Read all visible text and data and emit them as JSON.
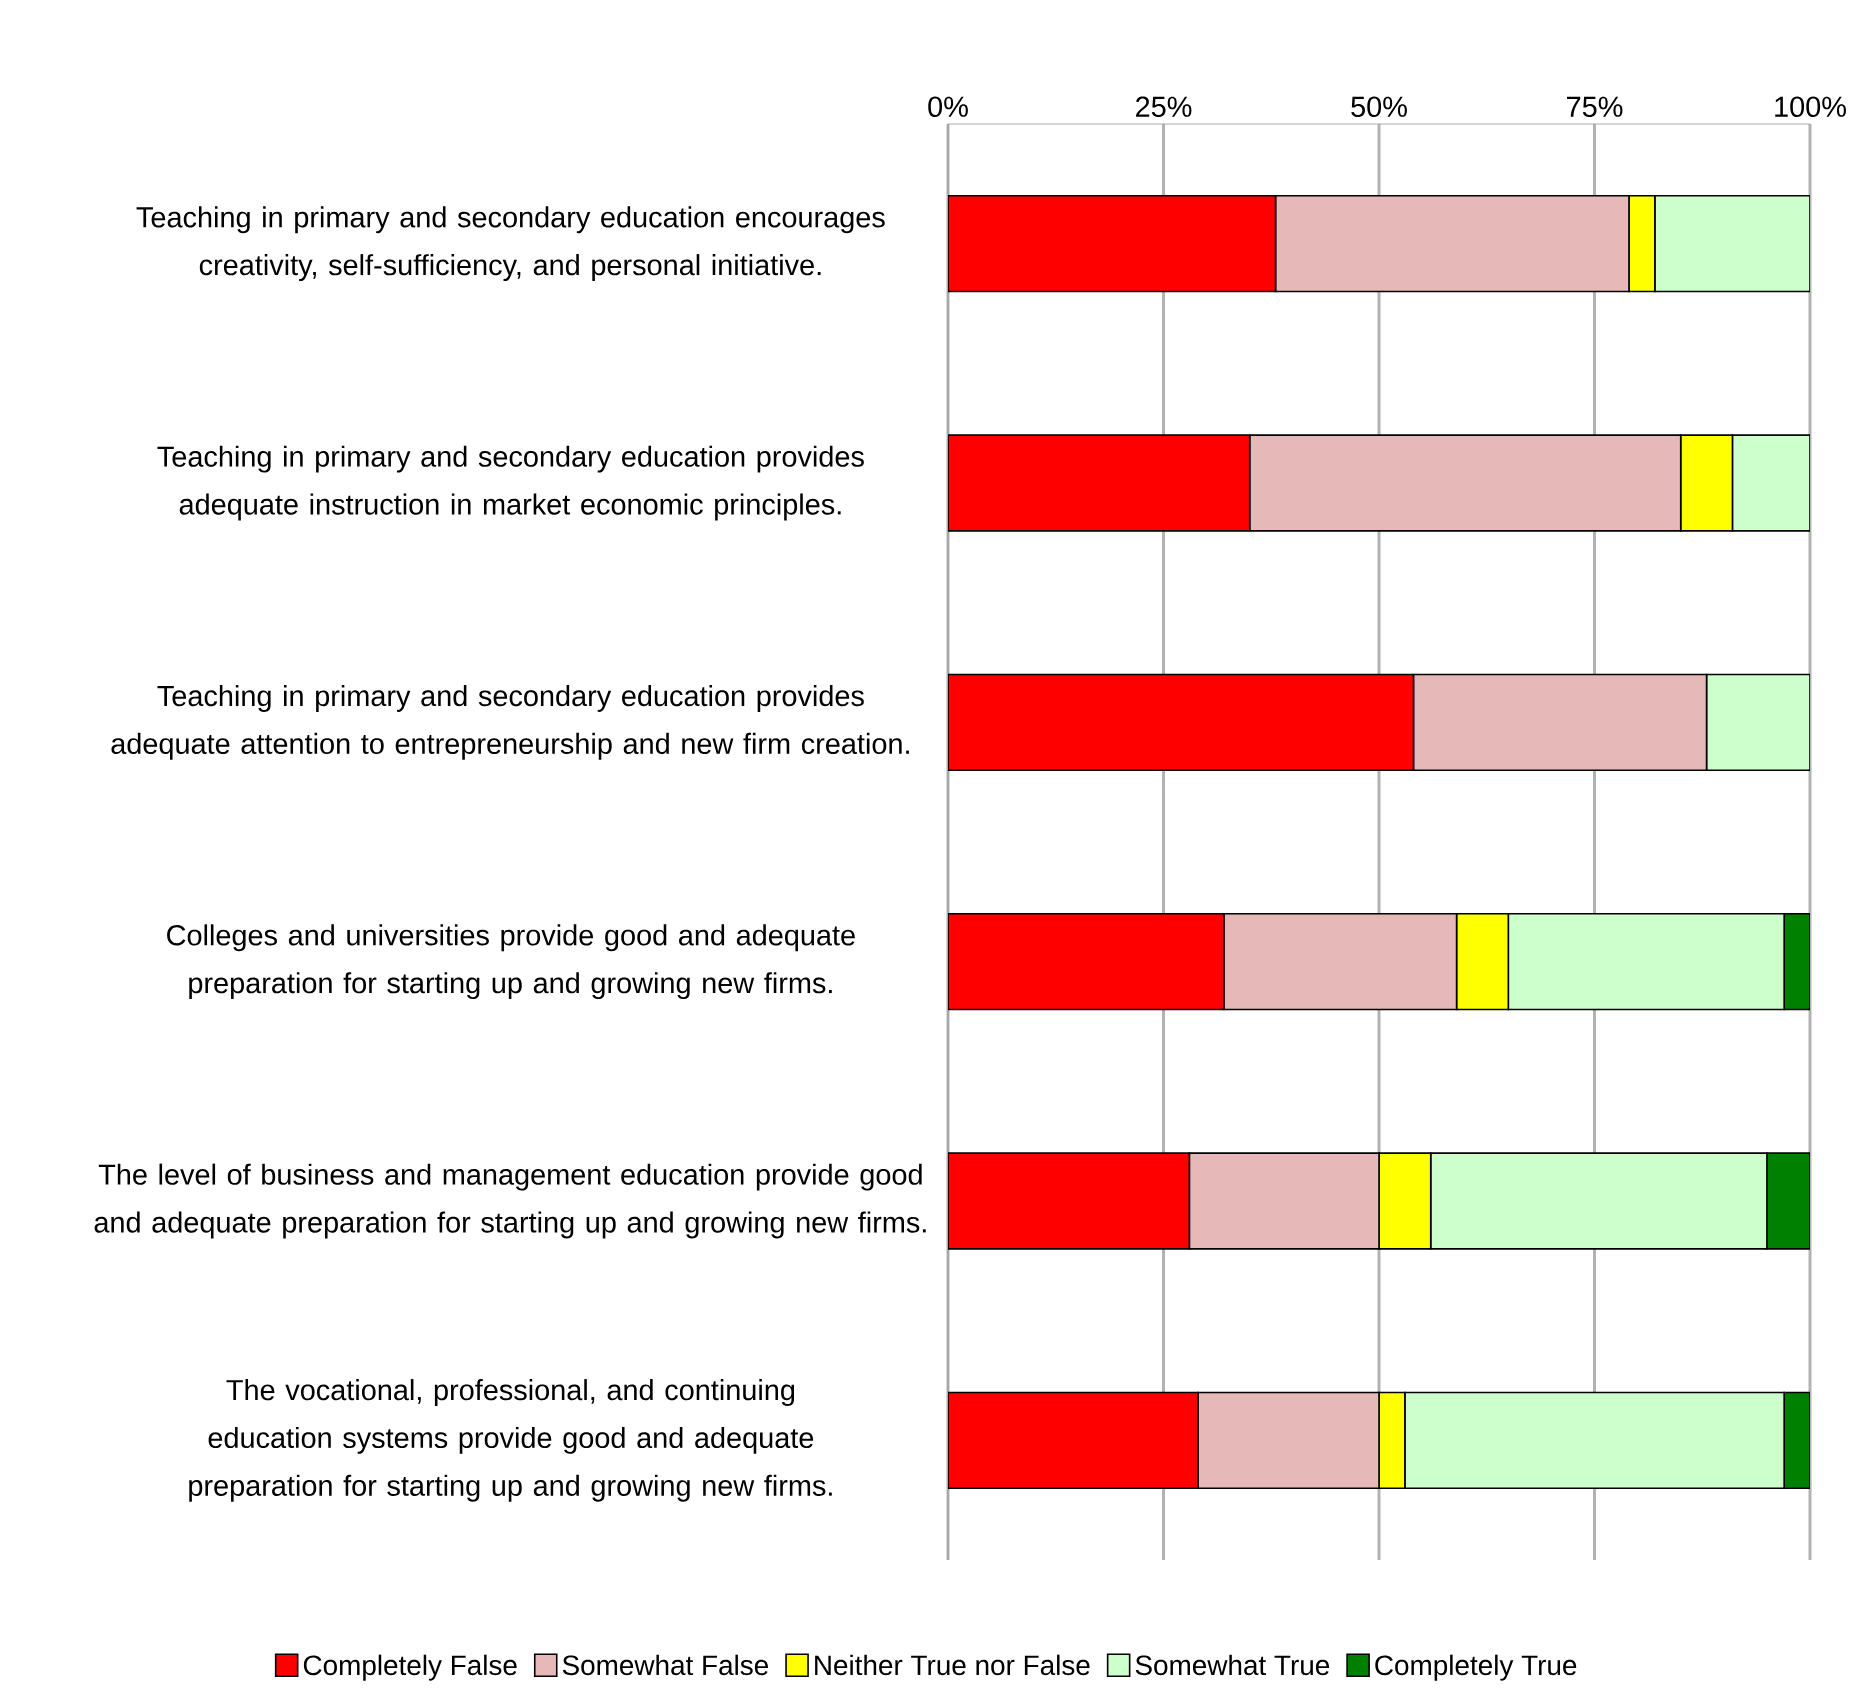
{
  "chart_data": {
    "type": "bar",
    "orientation": "horizontal",
    "stacked": true,
    "categories": [
      "Teaching in primary and secondary education encourages creativity, self-sufficiency, and personal initiative.",
      "Teaching in primary and secondary education provides adequate instruction in market economic principles.",
      "Teaching in primary and secondary education provides adequate attention to entrepreneurship and new firm creation.",
      "Colleges and universities provide good and adequate preparation for starting up and growing new firms.",
      "The level of business and management education provide good and adequate preparation for starting up and growing new firms.",
      "The vocational, professional, and continuing education systems provide good and adequate preparation for starting up and growing new firms."
    ],
    "series": [
      {
        "name": "Completely False",
        "color": "#ff0000",
        "values": [
          38,
          35,
          54,
          32,
          28,
          29
        ]
      },
      {
        "name": "Somewhat False",
        "color": "#e6b9b8",
        "values": [
          41,
          50,
          34,
          27,
          22,
          21
        ]
      },
      {
        "name": "Neither True nor False",
        "color": "#ffff00",
        "values": [
          3,
          6,
          0,
          6,
          6,
          3
        ]
      },
      {
        "name": "Somewhat True",
        "color": "#ccffcc",
        "values": [
          18,
          9,
          12,
          32,
          39,
          44
        ]
      },
      {
        "name": "Completely True",
        "color": "#008000",
        "values": [
          0,
          0,
          0,
          3,
          5,
          3
        ]
      }
    ],
    "xlim": [
      0,
      100
    ],
    "xticks": [
      {
        "value": 0,
        "label": "0%"
      },
      {
        "value": 25,
        "label": "25%"
      },
      {
        "value": 50,
        "label": "50%"
      },
      {
        "value": 75,
        "label": "75%"
      },
      {
        "value": 100,
        "label": "100%"
      }
    ],
    "grid": "x",
    "legend": "bottom"
  }
}
